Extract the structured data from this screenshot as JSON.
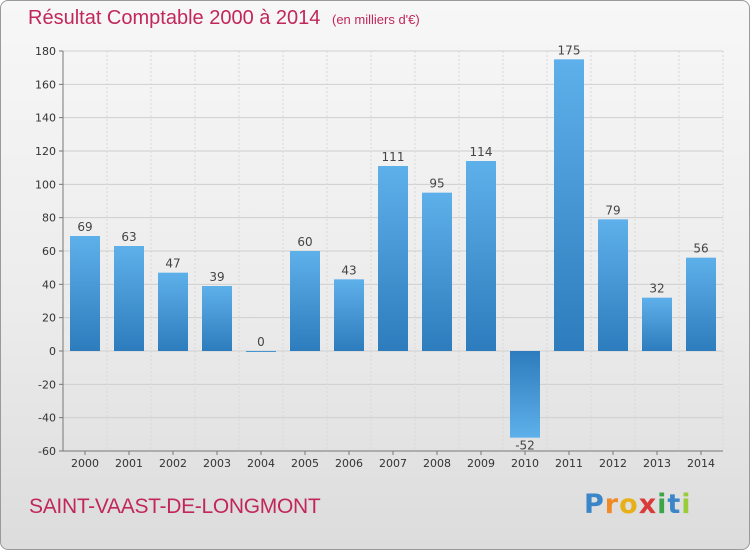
{
  "header": {
    "title": "Résultat Comptable 2000 à 2014",
    "subtitle": "(en milliers d'€)"
  },
  "footer": {
    "commune": "SAINT-VAAST-DE-LONGMONT",
    "logo_letters": [
      "P",
      "r",
      "o",
      "x",
      "i",
      "t",
      "i"
    ],
    "logo_colors": [
      "#3a86c8",
      "#f08a24",
      "#e8b018",
      "#d93a3a",
      "#3aa64b",
      "#3a86c8",
      "#9acb3a"
    ]
  },
  "chart_data": {
    "type": "bar",
    "title": "Résultat Comptable 2000 à 2014",
    "subtitle": "(en milliers d'€)",
    "xlabel": "",
    "ylabel": "",
    "categories": [
      "2000",
      "2001",
      "2002",
      "2003",
      "2004",
      "2005",
      "2006",
      "2007",
      "2008",
      "2009",
      "2010",
      "2011",
      "2012",
      "2013",
      "2014"
    ],
    "values": [
      69,
      63,
      47,
      39,
      0,
      60,
      43,
      111,
      95,
      114,
      -52,
      175,
      79,
      32,
      56
    ],
    "ylim": [
      -60,
      180
    ],
    "yticks": [
      -60,
      -40,
      -20,
      0,
      20,
      40,
      60,
      80,
      100,
      120,
      140,
      160,
      180
    ],
    "grid": true,
    "bar_color": "#4a9fdc",
    "bar_color_dark": "#2f7fbf"
  }
}
